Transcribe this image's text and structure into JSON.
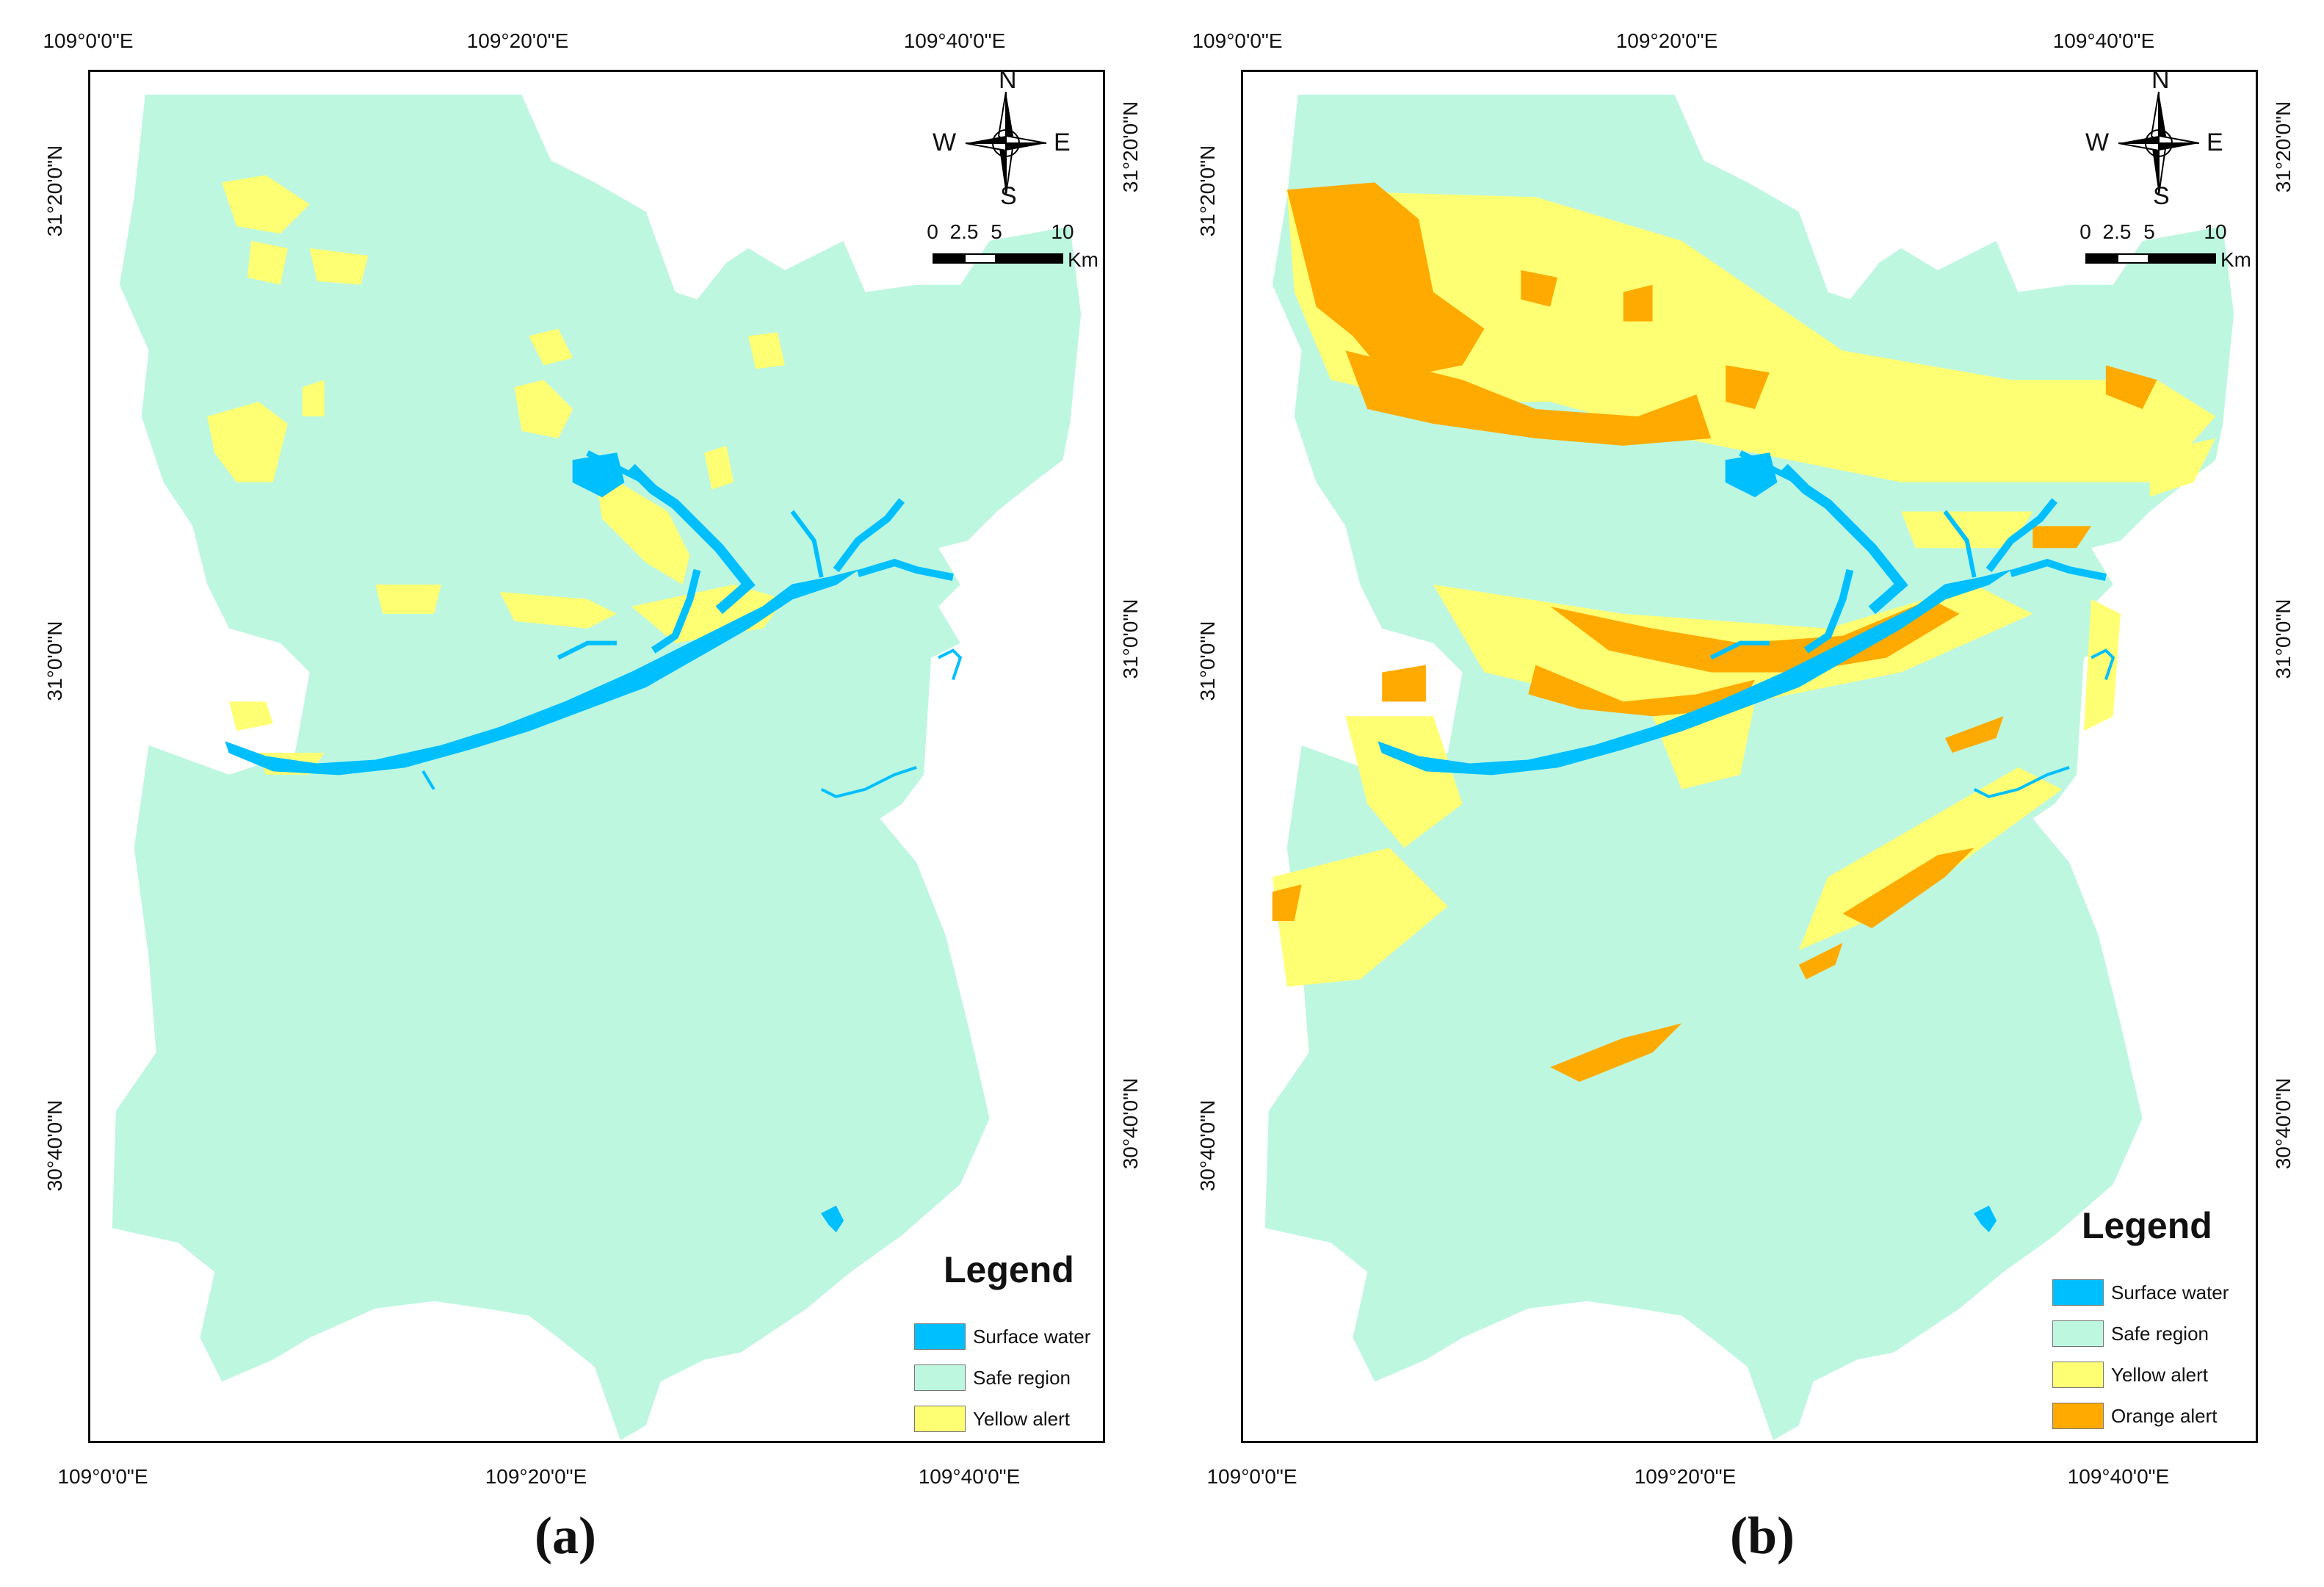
{
  "panels": [
    {
      "caption": "(a)",
      "lon_ticks": [
        "109°0'0\"E",
        "109°20'0\"E",
        "109°40'0\"E"
      ],
      "lat_ticks": [
        "31°20'0\"N",
        "31°0'0\"N",
        "30°40'0\"N"
      ],
      "legend": {
        "title": "Legend",
        "items": [
          {
            "label": "Surface water",
            "color": "#00bfff"
          },
          {
            "label": "Safe region",
            "color": "#bdf7e0"
          },
          {
            "label": "Yellow alert",
            "color": "#ffff73"
          }
        ]
      }
    },
    {
      "caption": "(b)",
      "lon_ticks": [
        "109°0'0\"E",
        "109°20'0\"E",
        "109°40'0\"E"
      ],
      "lat_ticks": [
        "31°20'0\"N",
        "31°0'0\"N",
        "30°40'0\"N"
      ],
      "legend": {
        "title": "Legend",
        "items": [
          {
            "label": "Surface water",
            "color": "#00bfff"
          },
          {
            "label": "Safe region",
            "color": "#bdf7e0"
          },
          {
            "label": "Yellow alert",
            "color": "#ffff73"
          },
          {
            "label": "Orange alert",
            "color": "#ffaa00"
          }
        ]
      }
    }
  ],
  "compass": {
    "n": "N",
    "s": "S",
    "e": "E",
    "w": "W"
  },
  "scale": {
    "ticks": [
      "0",
      "2.5",
      "5",
      "10"
    ],
    "unit": "Km"
  }
}
